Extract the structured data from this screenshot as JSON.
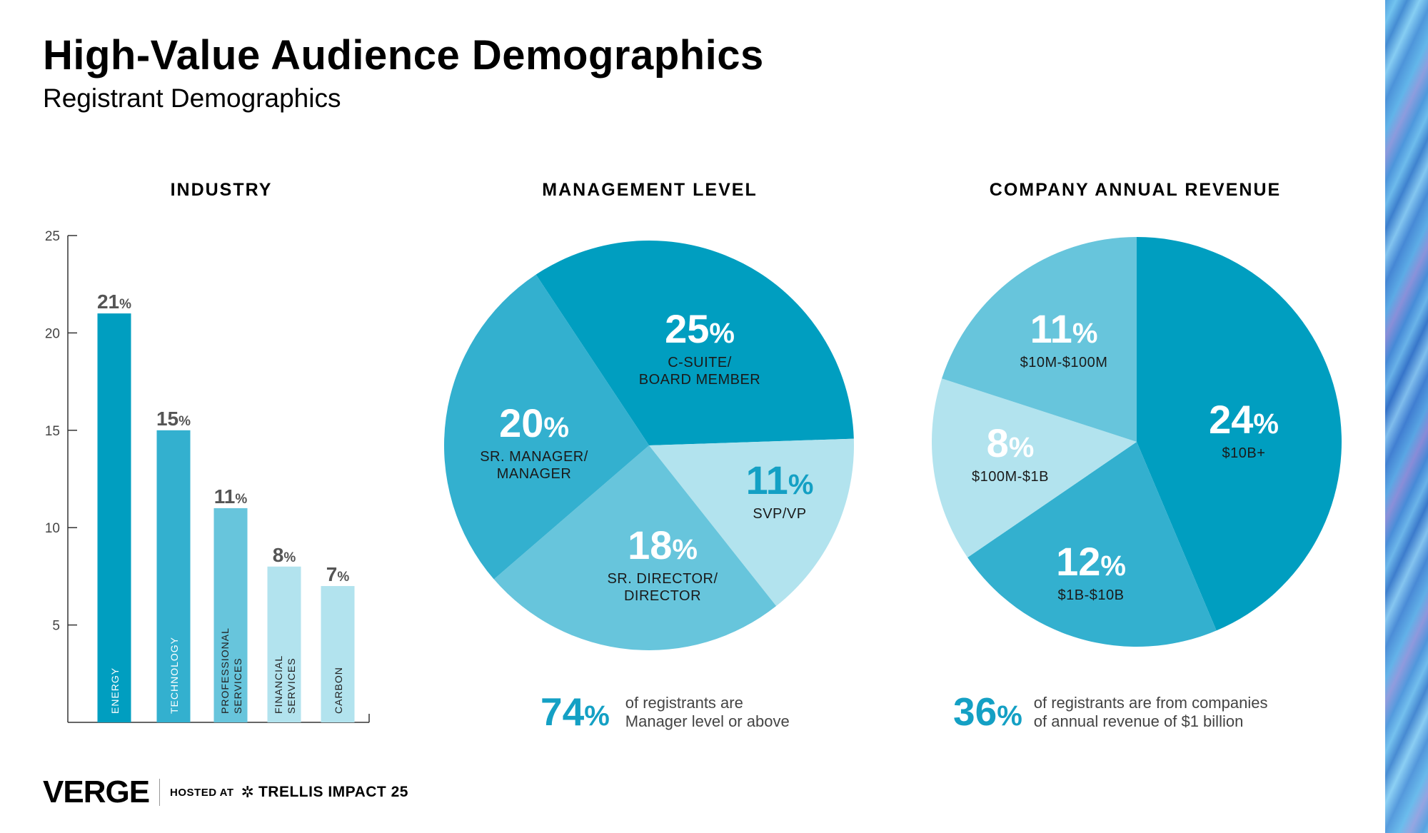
{
  "page": {
    "title": "High-Value Audience Demographics",
    "subtitle": "Registrant Demographics"
  },
  "chart_data": [
    {
      "type": "bar",
      "title": "INDUSTRY",
      "categories": [
        "ENERGY",
        "TECHNOLOGY",
        "PROFESSIONAL SERVICES",
        "FINANCIAL SERVICES",
        "CARBON"
      ],
      "values": [
        21,
        15,
        11,
        8,
        7
      ],
      "data_labels": [
        "21",
        "15",
        "11",
        "8",
        "7"
      ],
      "value_suffix": "%",
      "ylim": [
        0,
        25
      ],
      "yticks": [
        5,
        10,
        15,
        20,
        25
      ],
      "colors": [
        "#009ec0",
        "#33b0cf",
        "#67c5dc",
        "#b2e3ee",
        "#b2e3ee"
      ],
      "grid": false,
      "legend": "none"
    },
    {
      "type": "pie",
      "title": "MANAGEMENT LEVEL",
      "slices": [
        {
          "label": "C-SUITE/\nBOARD MEMBER",
          "value": 25,
          "color": "#009ec0",
          "label_color": "dark"
        },
        {
          "label": "SVP/VP",
          "value": 11,
          "color": "#b2e3ee",
          "label_color": "accent"
        },
        {
          "label": "SR. DIRECTOR/\nDIRECTOR",
          "value": 18,
          "color": "#67c5dc",
          "label_color": "dark"
        },
        {
          "label": "SR. MANAGER/\nMANAGER",
          "value": 20,
          "color": "#33b0cf",
          "label_color": "dark"
        }
      ],
      "value_suffix": "%"
    },
    {
      "type": "pie",
      "title": "COMPANY ANNUAL REVENUE",
      "slices": [
        {
          "label": "$10B+",
          "value": 24,
          "color": "#009ec0",
          "label_color": "dark"
        },
        {
          "label": "$1B-$10B",
          "value": 12,
          "color": "#33b0cf",
          "label_color": "dark"
        },
        {
          "label": "$100M-$1B",
          "value": 8,
          "color": "#b2e3ee",
          "label_color": "dark"
        },
        {
          "label": "$10M-$100M",
          "value": 11,
          "color": "#67c5dc",
          "label_color": "dark"
        }
      ],
      "value_suffix": "%"
    }
  ],
  "stats": {
    "management": {
      "value": "74",
      "suffix": "%",
      "text": "of registrants are\nManager level or above"
    },
    "revenue": {
      "value": "36",
      "suffix": "%",
      "text": "of registrants are from companies\nof annual revenue of $1 billion"
    }
  },
  "footer": {
    "logo": "VERGE",
    "hosted_label": "HOSTED AT",
    "event": "TRELLIS IMPACT 25"
  },
  "colors": {
    "accent": "#14a0c4",
    "dark_blue": "#009ec0",
    "mid_blue": "#33b0cf",
    "light_blue": "#67c5dc",
    "pale_blue": "#b2e3ee"
  }
}
